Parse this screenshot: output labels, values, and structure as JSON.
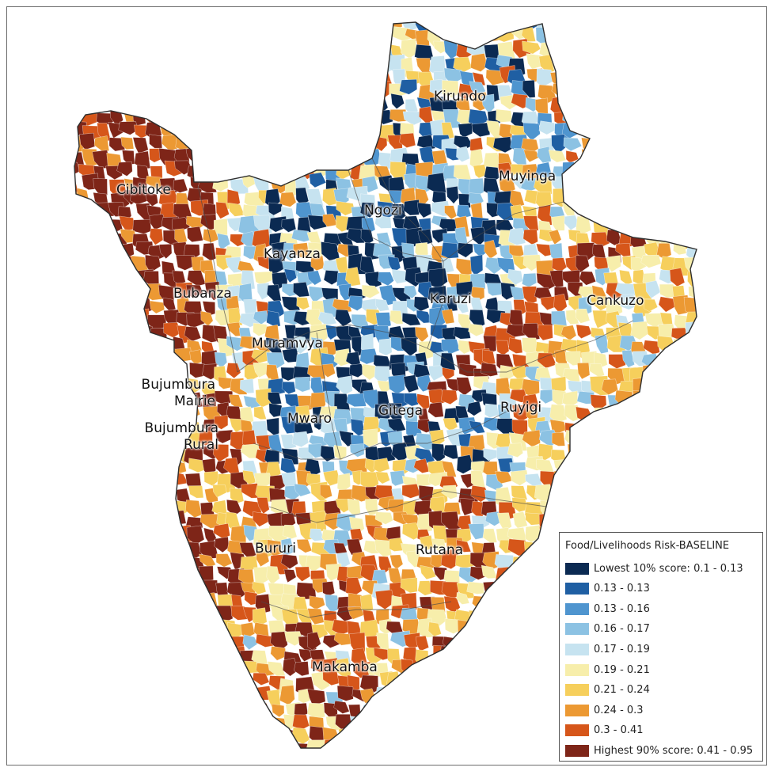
{
  "map": {
    "provinces": [
      {
        "name": "Kirundo"
      },
      {
        "name": "Cibitoke"
      },
      {
        "name": "Muyinga"
      },
      {
        "name": "Ngozi"
      },
      {
        "name": "Kayanza"
      },
      {
        "name": "Bubanza"
      },
      {
        "name": "Karuzi"
      },
      {
        "name": "Cankuzo"
      },
      {
        "name": "Muramvya"
      },
      {
        "name": "Bujumbura Mairie"
      },
      {
        "name": "Bujumbura Rural"
      },
      {
        "name": "Mwaro"
      },
      {
        "name": "Gitega"
      },
      {
        "name": "Ruyigi"
      },
      {
        "name": "Bururi"
      },
      {
        "name": "Rutana"
      },
      {
        "name": "Makamba"
      }
    ]
  },
  "labels": {
    "kirundo": "Kirundo",
    "cibitoke": "Cibitoke",
    "muyinga": "Muyinga",
    "ngozi": "Ngozi",
    "kayanza": "Kayanza",
    "bubanza": "Bubanza",
    "karuzi": "Karuzi",
    "cankuzo": "Cankuzo",
    "muramvya": "Muramvya",
    "bujumbura_mairie_1": "Bujumbura",
    "bujumbura_mairie_2": "Mairie",
    "bujumbura_rural_1": "Bujumbura",
    "bujumbura_rural_2": "Rural",
    "mwaro": "Mwaro",
    "gitega": "Gitega",
    "ruyigi": "Ruyigi",
    "bururi": "Bururi",
    "rutana": "Rutana",
    "makamba": "Makamba"
  },
  "legend": {
    "title": "Food/Livelihoods Risk-BASELINE",
    "items": [
      {
        "label": "Lowest 10% score: 0.1 - 0.13",
        "color": "#0b2a52"
      },
      {
        "label": "0.13 - 0.13",
        "color": "#1f5fa3"
      },
      {
        "label": "0.13 - 0.16",
        "color": "#4f95cf"
      },
      {
        "label": "0.16 - 0.17",
        "color": "#8cc2e3"
      },
      {
        "label": "0.17 - 0.19",
        "color": "#c6e3f0"
      },
      {
        "label": "0.19 - 0.21",
        "color": "#f7eeab"
      },
      {
        "label": "0.21 - 0.24",
        "color": "#f6cf5c"
      },
      {
        "label": "0.24 - 0.3",
        "color": "#ec9933"
      },
      {
        "label": "0.3 - 0.41",
        "color": "#d6561a"
      },
      {
        "label": "Highest 90% score: 0.41 - 0.95",
        "color": "#7e2518"
      }
    ]
  }
}
